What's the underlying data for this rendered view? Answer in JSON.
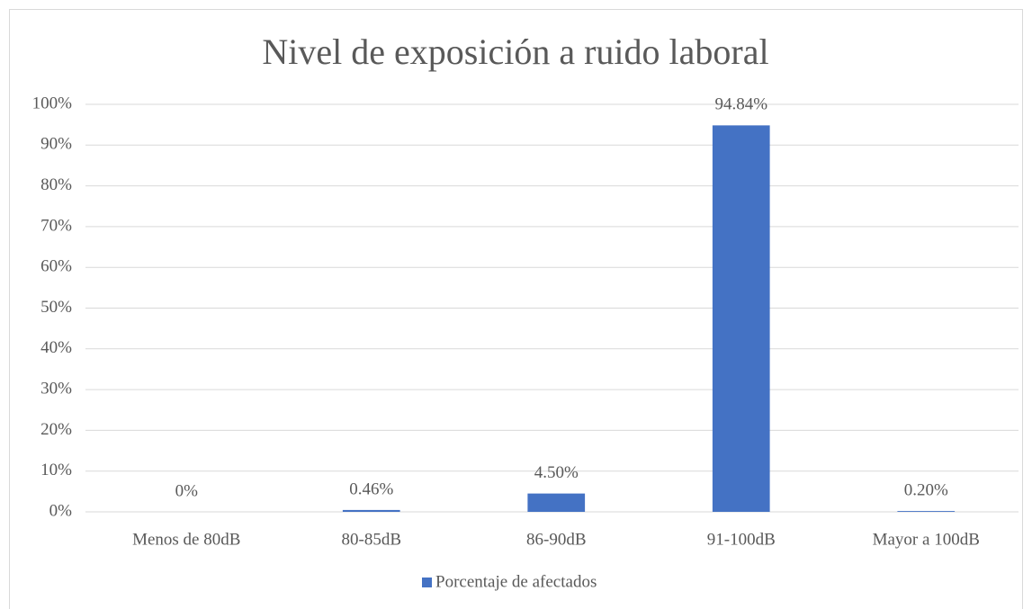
{
  "chart_data": {
    "type": "bar",
    "title": "Nivel de exposición a ruido laboral",
    "categories": [
      "Menos de 80dB",
      "80-85dB",
      "86-90dB",
      "91-100dB",
      "Mayor a 100dB"
    ],
    "series": [
      {
        "name": "Porcentaje de afectados",
        "color": "#4472c4",
        "values": [
          0,
          0.46,
          4.5,
          94.84,
          0.2
        ],
        "value_labels": [
          "0%",
          "0.46%",
          "4.50%",
          "94.84%",
          "0.20%"
        ]
      }
    ],
    "ylim": [
      0,
      100
    ],
    "yticks": [
      {
        "value": 0,
        "label": "0%"
      },
      {
        "value": 10,
        "label": "10%"
      },
      {
        "value": 20,
        "label": "20%"
      },
      {
        "value": 30,
        "label": "30%"
      },
      {
        "value": 40,
        "label": "40%"
      },
      {
        "value": 50,
        "label": "50%"
      },
      {
        "value": 60,
        "label": "60%"
      },
      {
        "value": 70,
        "label": "70%"
      },
      {
        "value": 80,
        "label": "80%"
      },
      {
        "value": 90,
        "label": "90%"
      },
      {
        "value": 100,
        "label": "100%"
      }
    ],
    "grid": true,
    "legend": "bottom"
  }
}
